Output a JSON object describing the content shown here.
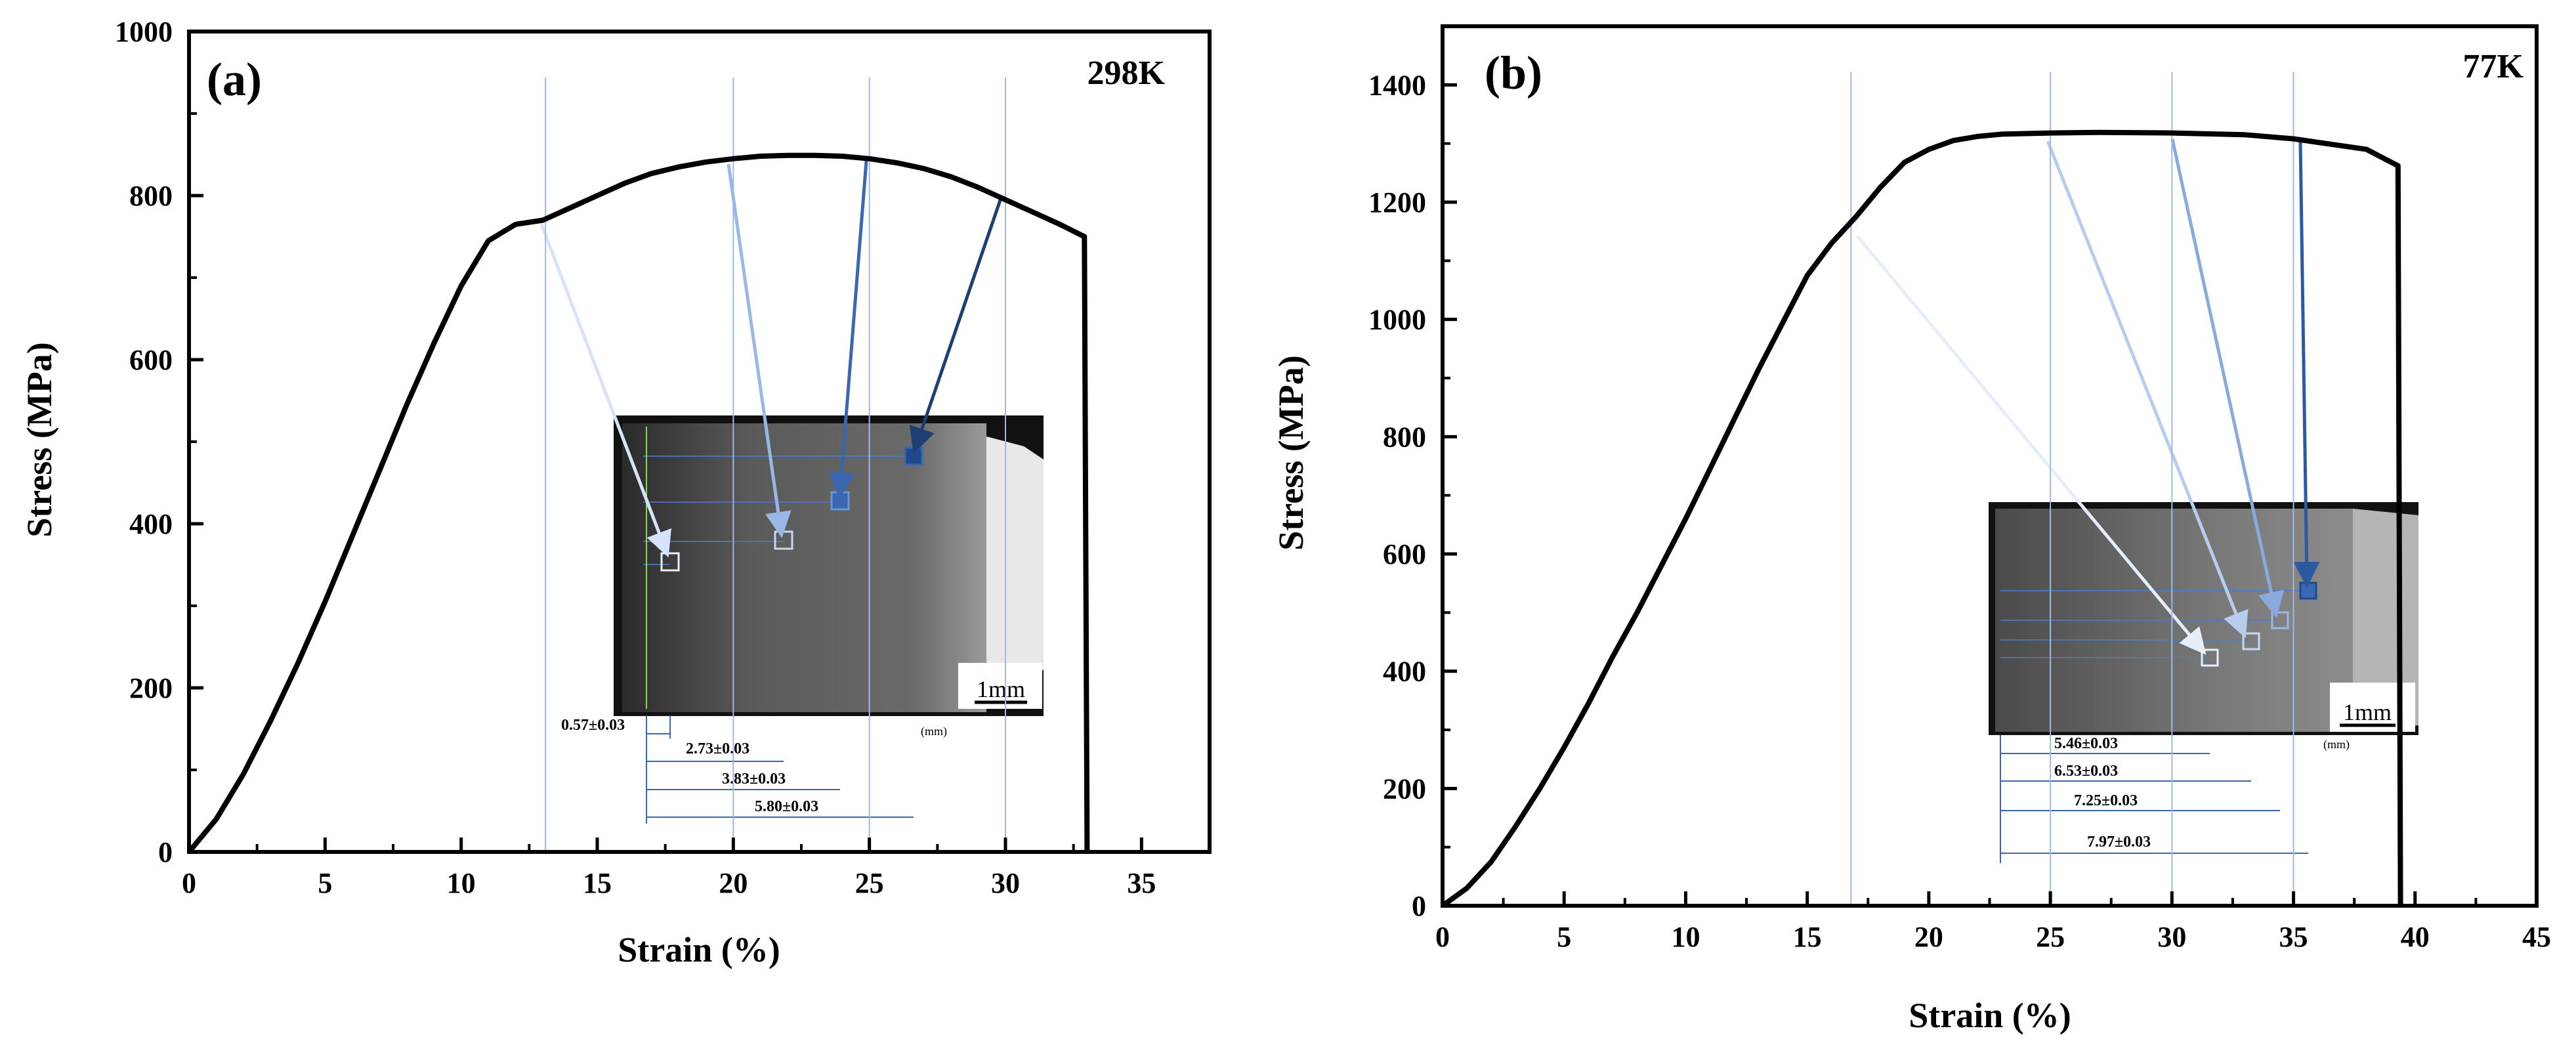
{
  "chart_data": [
    {
      "type": "line",
      "panel_label": "(a)",
      "temperature_label": "298K",
      "xlabel": "Strain (%)",
      "ylabel": "Stress (MPa)",
      "xlim": [
        0,
        37.5
      ],
      "ylim": [
        0,
        1000
      ],
      "x_ticks": [
        0,
        5,
        10,
        15,
        20,
        25,
        30,
        35
      ],
      "y_ticks": [
        0,
        200,
        400,
        600,
        800,
        1000
      ],
      "series": [
        {
          "name": "298K stress-strain",
          "x": [
            0,
            1,
            2,
            3,
            4,
            5,
            6,
            7,
            8,
            9,
            10,
            11,
            12,
            13,
            14,
            15,
            16,
            17,
            18,
            19,
            20,
            21,
            22,
            23,
            24,
            25,
            26,
            27,
            28,
            29,
            30,
            31,
            32,
            32.9,
            33.0
          ],
          "y": [
            0,
            40,
            95,
            160,
            230,
            305,
            385,
            465,
            545,
            620,
            690,
            745,
            765,
            770,
            785,
            800,
            815,
            827,
            835,
            841,
            845,
            848,
            849,
            849,
            848,
            845,
            840,
            833,
            823,
            810,
            795,
            780,
            765,
            750,
            0
          ]
        }
      ],
      "marked_strains": [
        13.1,
        20.0,
        25.0,
        30.0
      ],
      "inset": {
        "scale_bar_label": "1mm",
        "unit_label": "(mm)",
        "measurements": [
          "0.57±0.03",
          "2.73±0.03",
          "3.83±0.03",
          "5.80±0.03"
        ]
      }
    },
    {
      "type": "line",
      "panel_label": "(b)",
      "temperature_label": "77K",
      "xlabel": "Strain (%)",
      "ylabel": "Stress (MPa)",
      "xlim": [
        0,
        45
      ],
      "ylim": [
        0,
        1500
      ],
      "x_ticks": [
        0,
        5,
        10,
        15,
        20,
        25,
        30,
        35,
        40,
        45
      ],
      "y_ticks": [
        0,
        200,
        400,
        600,
        800,
        1000,
        1200,
        1400
      ],
      "series": [
        {
          "name": "77K stress-strain",
          "x": [
            0,
            1,
            2,
            3,
            4,
            5,
            6,
            7,
            8,
            9,
            10,
            11,
            12,
            13,
            14,
            15,
            16,
            17,
            18,
            19,
            20,
            21,
            22,
            23,
            25,
            27,
            30,
            33,
            35,
            37,
            38,
            39.3,
            39.4
          ],
          "y": [
            0,
            30,
            75,
            135,
            200,
            270,
            345,
            425,
            500,
            580,
            660,
            745,
            830,
            915,
            995,
            1075,
            1130,
            1175,
            1225,
            1268,
            1290,
            1305,
            1312,
            1316,
            1318,
            1319,
            1318,
            1315,
            1308,
            1296,
            1290,
            1262,
            0
          ]
        }
      ],
      "marked_strains": [
        16.8,
        25.0,
        30.0,
        35.0
      ],
      "inset": {
        "scale_bar_label": "1mm",
        "unit_label": "(mm)",
        "measurements": [
          "5.46±0.03",
          "6.53±0.03",
          "7.25±0.03",
          "7.97±0.03"
        ]
      }
    }
  ]
}
